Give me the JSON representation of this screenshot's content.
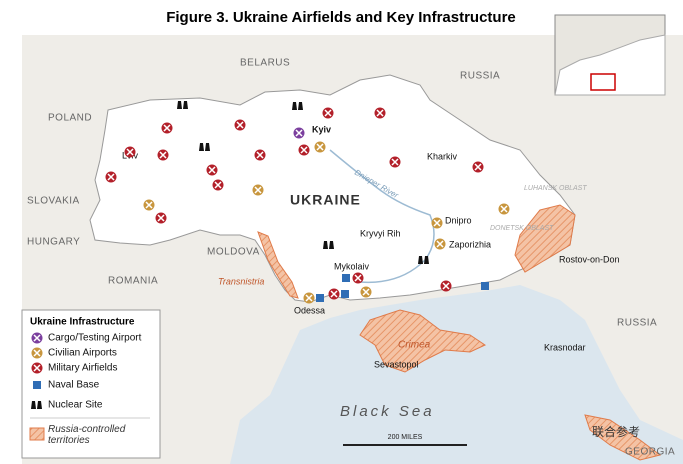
{
  "title": "Figure 3. Ukraine Airfields and Key Infrastructure",
  "countries": [
    "BELARUS",
    "RUSSIA",
    "POLAND",
    "SLOVAKIA",
    "HUNGARY",
    "MOLDOVA",
    "ROMANIA",
    "UKRAINE",
    "RUSSIA",
    "GEORGIA"
  ],
  "cities": [
    "Kyiv",
    "Lviv",
    "Kharkiv",
    "Dnipro",
    "Kryvyi Rih",
    "Zaporizhia",
    "Mykolaiv",
    "Odessa",
    "Sevastopol",
    "Rostov-on-Don",
    "Krasnodar"
  ],
  "regions": [
    "Transnistria",
    "Crimea",
    "LUHANSK OBLAST",
    "DONETSK OBLAST",
    "Dnieper River",
    "Black Sea"
  ],
  "legend": {
    "title": "Ukraine Infrastructure",
    "items": [
      "Cargo/Testing Airport",
      "Civilian Airports",
      "Military Airfields",
      "Naval Base",
      "Nuclear Site",
      "Russia-controlled territories"
    ]
  },
  "scale": "200 MILES",
  "watermark": "联合参考"
}
